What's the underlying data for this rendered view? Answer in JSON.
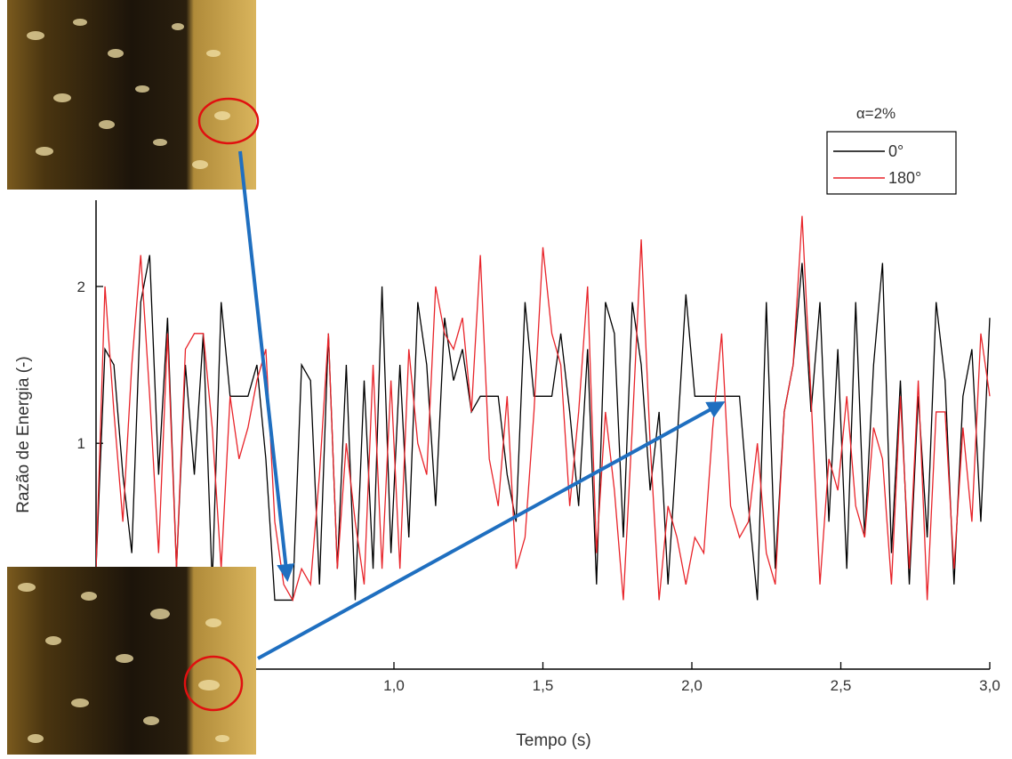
{
  "chart_data": {
    "type": "line",
    "x_label": "Tempo (s)",
    "y_label": "Razão de Energia (-)",
    "legend_title": "α=2%",
    "legend_position": "upper right",
    "xlim": [
      0,
      3
    ],
    "ylim": [
      -0.44,
      2.55
    ],
    "xticks": [
      {
        "value": 1,
        "label": "1,0"
      },
      {
        "value": 1.5,
        "label": "1,5"
      },
      {
        "value": 2,
        "label": "2,0"
      },
      {
        "value": 2.5,
        "label": "2,5"
      },
      {
        "value": 3,
        "label": "3,0"
      }
    ],
    "yticks": [
      1,
      2
    ],
    "x": [
      0,
      0.03,
      0.06,
      0.09,
      0.12,
      0.15,
      0.18,
      0.21,
      0.24,
      0.27,
      0.3,
      0.33,
      0.36,
      0.39,
      0.42,
      0.45,
      0.48,
      0.51,
      0.54,
      0.57,
      0.6,
      0.63,
      0.66,
      0.69,
      0.72,
      0.75,
      0.78,
      0.81,
      0.84,
      0.87,
      0.9,
      0.93,
      0.96,
      0.99,
      1.02,
      1.05,
      1.08,
      1.11,
      1.14,
      1.17,
      1.2,
      1.23,
      1.26,
      1.29,
      1.32,
      1.35,
      1.38,
      1.41,
      1.44,
      1.47,
      1.5,
      1.53,
      1.56,
      1.59,
      1.62,
      1.65,
      1.68,
      1.71,
      1.74,
      1.77,
      1.8,
      1.83,
      1.86,
      1.89,
      1.92,
      1.95,
      1.98,
      2.01,
      2.04,
      2.07,
      2.1,
      2.13,
      2.16,
      2.19,
      2.22,
      2.25,
      2.28,
      2.31,
      2.34,
      2.37,
      2.4,
      2.43,
      2.46,
      2.49,
      2.52,
      2.55,
      2.58,
      2.61,
      2.64,
      2.67,
      2.7,
      2.73,
      2.76,
      2.79,
      2.82,
      2.85,
      2.88,
      2.91,
      2.94,
      2.97,
      3.0
    ],
    "series": [
      {
        "name": "0°",
        "color": "#000000",
        "values": [
          0.2,
          1.6,
          1.5,
          0.8,
          0.3,
          1.9,
          2.2,
          0.8,
          1.8,
          0.2,
          1.5,
          0.8,
          1.7,
          0.1,
          1.9,
          1.3,
          1.3,
          1.3,
          1.5,
          0.9,
          0.0,
          0.0,
          0.0,
          1.5,
          1.4,
          0.1,
          1.7,
          0.2,
          1.5,
          0.0,
          1.4,
          0.2,
          2.0,
          0.3,
          1.5,
          0.4,
          1.9,
          1.5,
          0.6,
          1.8,
          1.4,
          1.6,
          1.2,
          1.3,
          1.3,
          1.3,
          0.8,
          0.5,
          1.9,
          1.3,
          1.3,
          1.3,
          1.7,
          1.2,
          0.6,
          1.6,
          0.1,
          1.9,
          1.7,
          0.4,
          1.9,
          1.5,
          0.7,
          1.2,
          0.1,
          1.0,
          1.95,
          1.3,
          1.3,
          1.3,
          1.3,
          1.3,
          1.3,
          0.6,
          0.0,
          1.9,
          0.2,
          1.2,
          1.5,
          2.15,
          1.2,
          1.9,
          0.5,
          1.6,
          0.2,
          1.9,
          0.4,
          1.5,
          2.15,
          0.3,
          1.4,
          0.1,
          1.3,
          0.4,
          1.9,
          1.4,
          0.1,
          1.3,
          1.6,
          0.5,
          1.8
        ]
      },
      {
        "name": "180°",
        "color": "#e8242a",
        "values": [
          0.2,
          2.0,
          1.2,
          0.5,
          1.5,
          2.2,
          1.3,
          0.3,
          1.7,
          0.2,
          1.6,
          1.7,
          1.7,
          1.1,
          0.2,
          1.3,
          0.9,
          1.1,
          1.4,
          1.6,
          0.5,
          0.1,
          0.0,
          0.2,
          0.1,
          0.8,
          1.7,
          0.2,
          1.0,
          0.5,
          0.1,
          1.5,
          0.2,
          1.4,
          0.2,
          1.6,
          1.0,
          0.8,
          2.0,
          1.7,
          1.6,
          1.8,
          1.2,
          2.2,
          0.9,
          0.6,
          1.3,
          0.2,
          0.4,
          1.2,
          2.25,
          1.7,
          1.5,
          0.6,
          1.2,
          2.0,
          0.3,
          1.2,
          0.7,
          0.0,
          1.1,
          2.3,
          1.0,
          0.0,
          0.6,
          0.4,
          0.1,
          0.4,
          0.3,
          1.1,
          1.7,
          0.6,
          0.4,
          0.5,
          1.0,
          0.3,
          0.1,
          1.2,
          1.5,
          2.45,
          1.3,
          0.1,
          0.9,
          0.7,
          1.3,
          0.6,
          0.4,
          1.1,
          0.9,
          0.1,
          1.3,
          0.2,
          1.4,
          0.0,
          1.2,
          1.2,
          0.2,
          1.1,
          0.5,
          1.7,
          1.3
        ]
      }
    ]
  }
}
